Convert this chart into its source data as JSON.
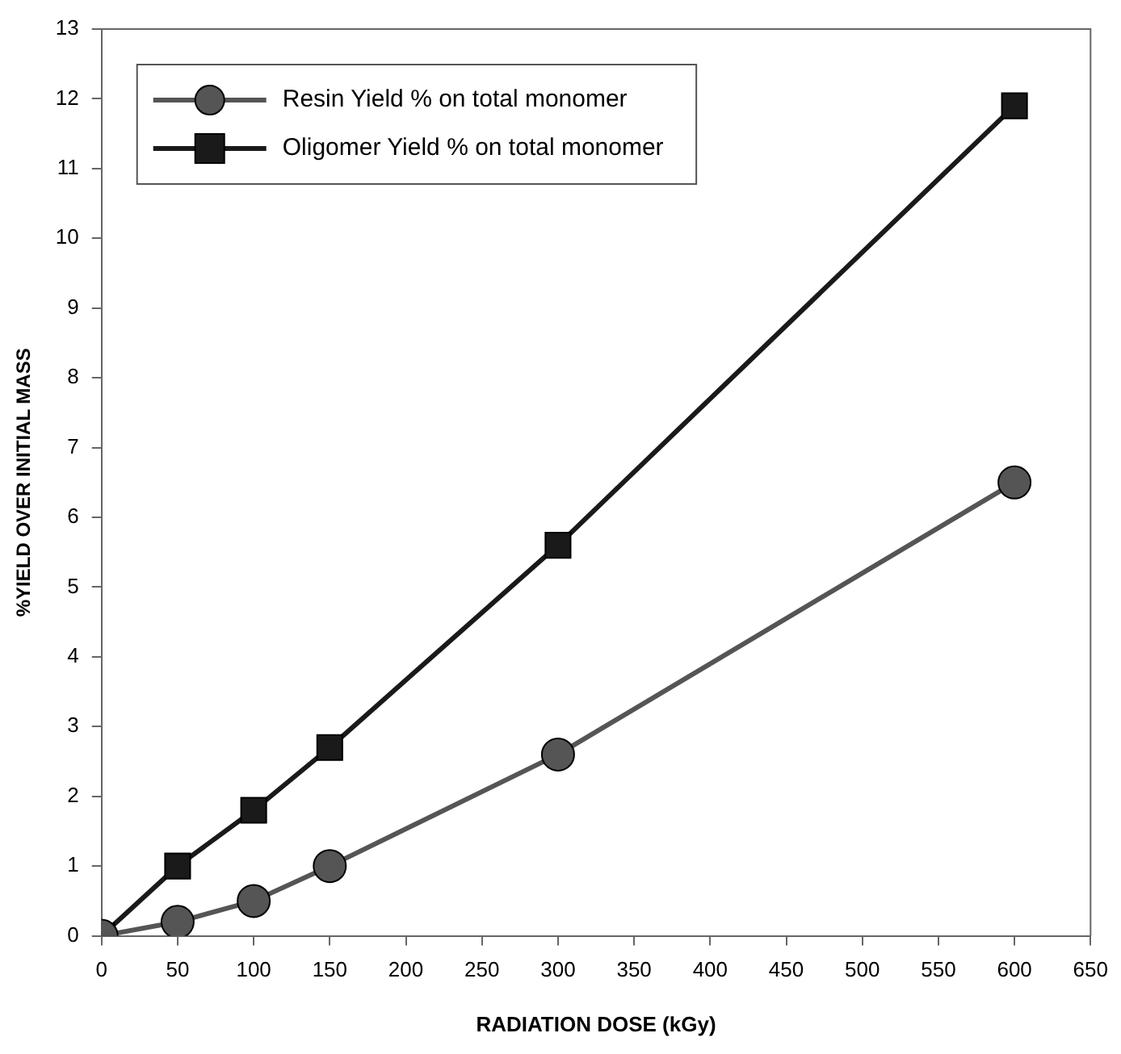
{
  "chart_data": {
    "type": "line",
    "xlabel": "RADIATION DOSE (kGy)",
    "ylabel": "%YIELD OVER INITIAL MASS",
    "x": [
      0,
      50,
      100,
      150,
      300,
      600
    ],
    "series": [
      {
        "name": "Resin Yield % on total monomer",
        "color": "#555555",
        "marker": "circle",
        "values": [
          0,
          0.2,
          0.5,
          1.0,
          2.6,
          6.5
        ]
      },
      {
        "name": "Oligomer Yield % on total monomer",
        "color": "#1a1a1a",
        "marker": "square",
        "values": [
          0,
          1.0,
          1.8,
          2.7,
          5.6,
          11.9
        ]
      }
    ],
    "xlim": [
      0,
      650
    ],
    "xticks": [
      0,
      50,
      100,
      150,
      200,
      250,
      300,
      350,
      400,
      450,
      500,
      550,
      600,
      650
    ],
    "ylim": [
      0,
      13
    ],
    "yticks": [
      0,
      1,
      2,
      3,
      4,
      5,
      6,
      7,
      8,
      9,
      10,
      11,
      12,
      13
    ],
    "grid": false,
    "legend": "top left"
  }
}
